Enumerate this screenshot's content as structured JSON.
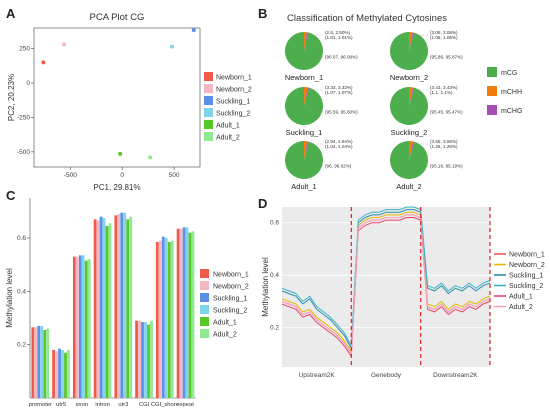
{
  "panel_labels": [
    "A",
    "B",
    "C",
    "D"
  ],
  "chart_data": [
    {
      "panel": "A",
      "type": "scatter",
      "title": "PCA Plot CG",
      "xlabel": "PC1, 29.81%",
      "ylabel": "PC2, 20.23%",
      "xlim": [
        -850,
        750
      ],
      "ylim": [
        -610,
        400
      ],
      "xticks": [
        -500,
        0,
        500
      ],
      "yticks": [
        -500,
        -250,
        0,
        250
      ],
      "legend_position": "right",
      "series": [
        {
          "name": "Newborn_1",
          "color": "#f05a4a",
          "x": -760,
          "y": 150
        },
        {
          "name": "Newborn_2",
          "color": "#f4b8c4",
          "x": -560,
          "y": 280
        },
        {
          "name": "Suckling_1",
          "color": "#5b8fe8",
          "x": 690,
          "y": 385
        },
        {
          "name": "Suckling_2",
          "color": "#7fd4ec",
          "x": 480,
          "y": 265
        },
        {
          "name": "Adult_1",
          "color": "#58c828",
          "x": -20,
          "y": -515
        },
        {
          "name": "Adult_2",
          "color": "#90e890",
          "x": 270,
          "y": -540
        }
      ]
    },
    {
      "panel": "B",
      "type": "pie",
      "title": "Classification of Methylated Cytosines",
      "legend": [
        {
          "name": "mCG",
          "color": "#4cae4c"
        },
        {
          "name": "mCHH",
          "color": "#f07c10"
        },
        {
          "name": "mCHG",
          "color": "#a64fb2"
        }
      ],
      "pies": [
        {
          "name": "Newborn_1",
          "mCG": 96.07,
          "mCHH": 2.5,
          "mCHG": 1.01,
          "labels": [
            "(2.5, 2.50%)",
            "(1.01, 1.01%)",
            "(96.07, 96.09%)"
          ]
        },
        {
          "name": "Newborn_2",
          "mCG": 95.86,
          "mCHH": 3.06,
          "mCHG": 1.05,
          "labels": [
            "(3.06, 3.08%)",
            "(1.05, 1.05%)",
            "(95.86, 95.87%)"
          ]
        },
        {
          "name": "Suckling_1",
          "mCG": 95.59,
          "mCHH": 3.33,
          "mCHG": 1.07,
          "labels": [
            "(3.33, 3.33%)",
            "(1.07, 1.07%)",
            "(95.59, 95.60%)"
          ]
        },
        {
          "name": "Suckling_2",
          "mCG": 95.45,
          "mCHH": 3.43,
          "mCHG": 1.1,
          "labels": [
            "(3.43, 3.43%)",
            "(1.1, 1.1%)",
            "(95.45, 95.47%)"
          ]
        },
        {
          "name": "Adult_1",
          "mCG": 96,
          "mCHH": 2.94,
          "mCHG": 1.04,
          "labels": [
            "(2.94, 2.94%)",
            "(1.04, 1.04%)",
            "(96, 96.02%)"
          ]
        },
        {
          "name": "Adult_2",
          "mCG": 95.16,
          "mCHH": 3.55,
          "mCHG": 1.26,
          "labels": [
            "(3.55, 3.55%)",
            "(1.26, 1.26%)",
            "(95.16, 95.19%)"
          ]
        }
      ]
    },
    {
      "panel": "C",
      "type": "bar",
      "xlabel": "",
      "ylabel": "Methylation level",
      "ylim": [
        0,
        0.75
      ],
      "yticks": [
        0.2,
        0.4,
        0.6
      ],
      "legend_position": "right",
      "categories": [
        "promoter",
        "utr5",
        "exon",
        "intron",
        "utr3",
        "CGI",
        "CGI_shore",
        "repeat"
      ],
      "series": [
        {
          "name": "Newborn_1",
          "color": "#f05a4a",
          "values": [
            0.265,
            0.18,
            0.53,
            0.67,
            0.685,
            0.29,
            0.585,
            0.635
          ]
        },
        {
          "name": "Newborn_2",
          "color": "#f4b8c4",
          "values": [
            0.265,
            0.175,
            0.53,
            0.665,
            0.69,
            0.29,
            0.59,
            0.635
          ]
        },
        {
          "name": "Suckling_1",
          "color": "#5b8fe8",
          "values": [
            0.27,
            0.185,
            0.535,
            0.68,
            0.695,
            0.285,
            0.605,
            0.64
          ]
        },
        {
          "name": "Suckling_2",
          "color": "#7fd4ec",
          "values": [
            0.27,
            0.18,
            0.535,
            0.675,
            0.695,
            0.285,
            0.6,
            0.64
          ]
        },
        {
          "name": "Adult_1",
          "color": "#58c828",
          "values": [
            0.255,
            0.17,
            0.515,
            0.645,
            0.67,
            0.275,
            0.585,
            0.62
          ]
        },
        {
          "name": "Adult_2",
          "color": "#90e890",
          "values": [
            0.26,
            0.18,
            0.52,
            0.655,
            0.68,
            0.29,
            0.59,
            0.625
          ]
        }
      ]
    },
    {
      "panel": "D",
      "type": "line",
      "xlabel": "",
      "ylabel": "Methylation level",
      "ylim": [
        0.05,
        0.66
      ],
      "yticks": [
        0.2,
        0.4,
        0.6
      ],
      "region_labels": [
        "Upstream2K",
        "Genebody",
        "Downstream2K"
      ],
      "region_bounds": [
        0,
        50,
        100,
        150
      ],
      "legend_position": "right",
      "x": [
        0,
        5,
        10,
        15,
        20,
        25,
        30,
        35,
        40,
        45,
        50,
        55,
        60,
        65,
        70,
        75,
        80,
        85,
        90,
        95,
        100,
        105,
        110,
        115,
        120,
        125,
        130,
        135,
        140,
        145,
        150
      ],
      "series": [
        {
          "name": "Newborn_1",
          "color": "#f05a4a",
          "values": [
            0.3,
            0.29,
            0.28,
            0.25,
            0.26,
            0.23,
            0.21,
            0.19,
            0.17,
            0.14,
            0.1,
            0.58,
            0.6,
            0.61,
            0.61,
            0.62,
            0.62,
            0.62,
            0.63,
            0.63,
            0.62,
            0.28,
            0.27,
            0.29,
            0.26,
            0.28,
            0.27,
            0.29,
            0.28,
            0.3,
            0.31
          ]
        },
        {
          "name": "Newborn_2",
          "color": "#e6b800",
          "values": [
            0.31,
            0.3,
            0.29,
            0.26,
            0.27,
            0.24,
            0.22,
            0.2,
            0.18,
            0.15,
            0.11,
            0.59,
            0.61,
            0.62,
            0.62,
            0.63,
            0.63,
            0.63,
            0.64,
            0.64,
            0.63,
            0.29,
            0.28,
            0.3,
            0.27,
            0.29,
            0.28,
            0.3,
            0.29,
            0.31,
            0.32
          ]
        },
        {
          "name": "Suckling_1",
          "color": "#2f8fa8",
          "values": [
            0.34,
            0.33,
            0.32,
            0.29,
            0.31,
            0.27,
            0.25,
            0.23,
            0.2,
            0.17,
            0.12,
            0.6,
            0.62,
            0.63,
            0.63,
            0.64,
            0.64,
            0.64,
            0.65,
            0.65,
            0.64,
            0.35,
            0.34,
            0.36,
            0.33,
            0.35,
            0.34,
            0.36,
            0.34,
            0.36,
            0.37
          ]
        },
        {
          "name": "Suckling_2",
          "color": "#3cb4c8",
          "values": [
            0.35,
            0.34,
            0.33,
            0.3,
            0.32,
            0.28,
            0.26,
            0.24,
            0.21,
            0.18,
            0.13,
            0.61,
            0.63,
            0.64,
            0.64,
            0.65,
            0.65,
            0.65,
            0.66,
            0.66,
            0.65,
            0.36,
            0.35,
            0.37,
            0.34,
            0.36,
            0.35,
            0.37,
            0.35,
            0.37,
            0.38
          ]
        },
        {
          "name": "Adult_1",
          "color": "#e8446e",
          "values": [
            0.29,
            0.28,
            0.27,
            0.24,
            0.25,
            0.22,
            0.2,
            0.18,
            0.16,
            0.13,
            0.09,
            0.57,
            0.59,
            0.6,
            0.6,
            0.61,
            0.61,
            0.61,
            0.62,
            0.62,
            0.61,
            0.27,
            0.26,
            0.28,
            0.25,
            0.27,
            0.26,
            0.28,
            0.27,
            0.29,
            0.3
          ]
        },
        {
          "name": "Adult_2",
          "color": "#f4a6c0",
          "values": [
            0.3,
            0.29,
            0.28,
            0.25,
            0.26,
            0.23,
            0.21,
            0.19,
            0.17,
            0.14,
            0.1,
            0.58,
            0.6,
            0.61,
            0.61,
            0.62,
            0.62,
            0.62,
            0.63,
            0.63,
            0.62,
            0.28,
            0.27,
            0.29,
            0.26,
            0.28,
            0.27,
            0.29,
            0.28,
            0.3,
            0.31
          ]
        }
      ]
    }
  ]
}
